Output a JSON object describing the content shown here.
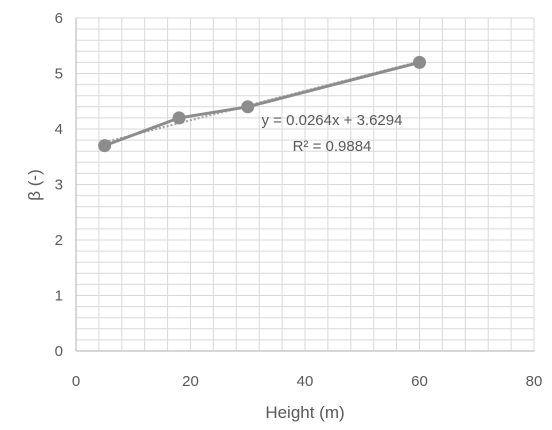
{
  "chart_data": {
    "type": "scatter",
    "title": "",
    "xlabel": "Height (m)",
    "ylabel": "β (-)",
    "xlim": [
      0,
      80
    ],
    "ylim": [
      0,
      6
    ],
    "xticks": [
      0,
      20,
      40,
      60,
      80
    ],
    "yticks": [
      0,
      1,
      2,
      3,
      4,
      5,
      6
    ],
    "x_major_step": 20,
    "y_major_step": 1,
    "x_minor_step": 4,
    "y_minor_step": 0.2,
    "grid": true,
    "legend": "none",
    "series": [
      {
        "x": [
          5,
          18,
          30,
          60
        ],
        "y": [
          3.7,
          4.2,
          4.4,
          5.2
        ],
        "color": "#8c8c8c"
      }
    ],
    "trendline": {
      "type": "linear",
      "slope": 0.0264,
      "intercept": 3.6294,
      "equation": "y = 0.0264x + 3.6294",
      "r2_label": "R² = 0.9884",
      "color": "#a6a6a6"
    },
    "colors": {
      "grid": "#d9d9d9",
      "axis": "#bfbfbf",
      "text": "#595959"
    }
  }
}
